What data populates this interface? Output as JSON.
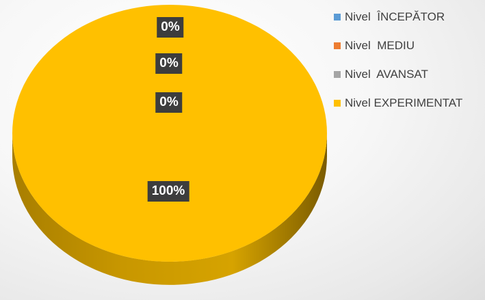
{
  "chart_data": {
    "type": "pie",
    "style": "3d",
    "categories": [
      "Nivel  ÎNCEPĂTOR",
      "Nivel  MEDIU",
      "Nivel  AVANSAT",
      "Nivel EXPERIMENTAT"
    ],
    "values": [
      0,
      0,
      0,
      100
    ],
    "data_labels": [
      "0%",
      "0%",
      "0%",
      "100%"
    ],
    "colors": [
      "#5b9bd5",
      "#ed7d31",
      "#a5a5a5",
      "#ffc000"
    ],
    "legend_position": "right"
  }
}
